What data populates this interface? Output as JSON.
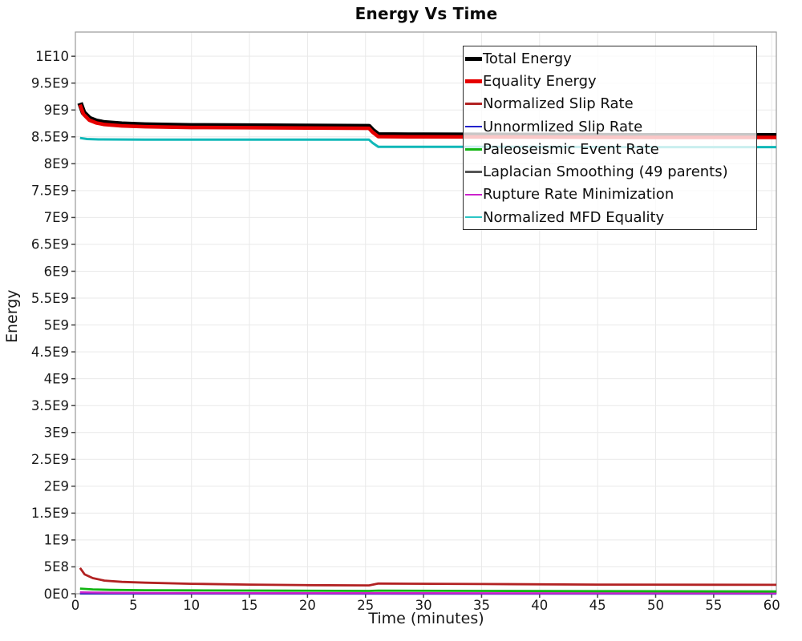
{
  "title": "Energy Vs Time",
  "axes": {
    "x": {
      "label": "Time (minutes)",
      "tick_labels": [
        "0",
        "5",
        "10",
        "15",
        "20",
        "25",
        "30",
        "35",
        "40",
        "45",
        "50",
        "55",
        "60"
      ],
      "tick_values": [
        0,
        5,
        10,
        15,
        20,
        25,
        30,
        35,
        40,
        45,
        50,
        55,
        60
      ]
    },
    "y": {
      "label": "Energy",
      "tick_labels": [
        "0E0",
        "5E8",
        "1E9",
        "1.5E9",
        "2E9",
        "2.5E9",
        "3E9",
        "3.5E9",
        "4E9",
        "4.5E9",
        "5E9",
        "5.5E9",
        "6E9",
        "6.5E9",
        "7E9",
        "7.5E9",
        "8E9",
        "8.5E9",
        "9E9",
        "9.5E9",
        "1E10"
      ],
      "tick_values": [
        0,
        500000000.0,
        1000000000.0,
        1500000000.0,
        2000000000.0,
        2500000000.0,
        3000000000.0,
        3500000000.0,
        4000000000.0,
        4500000000.0,
        5000000000.0,
        5500000000.0,
        6000000000.0,
        6500000000.0,
        7000000000.0,
        7500000000.0,
        8000000000.0,
        8500000000.0,
        9000000000.0,
        9500000000.0,
        10000000000.0
      ]
    }
  },
  "legend": {
    "items": [
      {
        "label": "Total Energy",
        "color": "#000000",
        "swatch_thickness": 5
      },
      {
        "label": "Equality Energy",
        "color": "#e60000",
        "swatch_thickness": 5
      },
      {
        "label": "Normalized Slip Rate",
        "color": "#b22222",
        "swatch_thickness": 2.5
      },
      {
        "label": "Unnormlized Slip Rate",
        "color": "#2222cc",
        "swatch_thickness": 2.5
      },
      {
        "label": "Paleoseismic Event Rate",
        "color": "#12b512",
        "swatch_thickness": 2.5
      },
      {
        "label": "Laplacian Smoothing (49 parents)",
        "color": "#555555",
        "swatch_thickness": 2.5
      },
      {
        "label": "Rupture Rate Minimization",
        "color": "#cc22cc",
        "swatch_thickness": 2.5
      },
      {
        "label": "Normalized MFD Equality",
        "color": "#2cc5c5",
        "swatch_thickness": 2.5
      }
    ]
  },
  "chart_data": {
    "type": "line",
    "title": "Energy Vs Time",
    "xlabel": "Time (minutes)",
    "ylabel": "Energy",
    "xlim": [
      0,
      60.4
    ],
    "ylim": [
      0,
      10450000000.0
    ],
    "grid": true,
    "grid_color": "#e9e9e9",
    "border_color": "#9a9a9a",
    "tick_color": "#444444",
    "legend_position": "top-right",
    "series": [
      {
        "name": "Laplacian Smoothing (49 parents)",
        "color": "#555555",
        "width": 2.5,
        "points": [
          [
            0.4,
            2000000.0
          ],
          [
            10,
            1500000.0
          ],
          [
            60.4,
            1000000.0
          ]
        ]
      },
      {
        "name": "Unnormlized Slip Rate",
        "color": "#2222cc",
        "width": 2.5,
        "points": [
          [
            0.4,
            6000000.0
          ],
          [
            5,
            4000000.0
          ],
          [
            15,
            3000000.0
          ],
          [
            60.4,
            2000000.0
          ]
        ]
      },
      {
        "name": "Rupture Rate Minimization",
        "color": "#cc22cc",
        "width": 2.5,
        "points": [
          [
            0.4,
            25000000.0
          ],
          [
            3,
            18000000.0
          ],
          [
            8,
            14000000.0
          ],
          [
            15,
            12000000.0
          ],
          [
            30,
            10000000.0
          ],
          [
            60.4,
            9000000.0
          ]
        ]
      },
      {
        "name": "Paleoseismic Event Rate",
        "color": "#12b512",
        "width": 2.8,
        "points": [
          [
            0.4,
            95000000.0
          ],
          [
            1.5,
            80000000.0
          ],
          [
            3,
            72000000.0
          ],
          [
            6,
            66000000.0
          ],
          [
            10,
            62000000.0
          ],
          [
            18,
            56000000.0
          ],
          [
            25.3,
            52000000.0
          ],
          [
            26.1,
            58000000.0
          ],
          [
            35,
            52000000.0
          ],
          [
            45,
            47000000.0
          ],
          [
            60.4,
            42000000.0
          ]
        ]
      },
      {
        "name": "Normalized Slip Rate",
        "color": "#b22222",
        "width": 2.8,
        "points": [
          [
            0.4,
            480000000.0
          ],
          [
            0.8,
            360000000.0
          ],
          [
            1.5,
            290000000.0
          ],
          [
            2.5,
            245000000.0
          ],
          [
            4,
            220000000.0
          ],
          [
            6,
            205000000.0
          ],
          [
            10,
            185000000.0
          ],
          [
            15,
            170000000.0
          ],
          [
            20,
            160000000.0
          ],
          [
            25.3,
            155000000.0
          ],
          [
            26.1,
            190000000.0
          ],
          [
            35,
            180000000.0
          ],
          [
            45,
            170000000.0
          ],
          [
            60.4,
            165000000.0
          ]
        ]
      },
      {
        "name": "Normalized MFD Equality",
        "color": "#10b8b8",
        "width": 3,
        "points": [
          [
            0.4,
            8480000000.0
          ],
          [
            1,
            8460000000.0
          ],
          [
            2,
            8452000000.0
          ],
          [
            6,
            8450000000.0
          ],
          [
            12,
            8450000000.0
          ],
          [
            20,
            8450000000.0
          ],
          [
            25.3,
            8448000000.0
          ],
          [
            25.6,
            8390000000.0
          ],
          [
            26.1,
            8315000000.0
          ],
          [
            35,
            8315000000.0
          ],
          [
            50,
            8310000000.0
          ],
          [
            60.4,
            8310000000.0
          ]
        ]
      },
      {
        "name": "Total Energy",
        "color": "#000000",
        "width": 7,
        "points": [
          [
            0.4,
            9130000000.0
          ],
          [
            0.7,
            8950000000.0
          ],
          [
            1.2,
            8840000000.0
          ],
          [
            1.8,
            8790000000.0
          ],
          [
            2.5,
            8760000000.0
          ],
          [
            4,
            8735000000.0
          ],
          [
            6,
            8720000000.0
          ],
          [
            10,
            8705000000.0
          ],
          [
            15,
            8700000000.0
          ],
          [
            20,
            8695000000.0
          ],
          [
            25.3,
            8690000000.0
          ],
          [
            25.6,
            8620000000.0
          ],
          [
            26.1,
            8535000000.0
          ],
          [
            30,
            8530000000.0
          ],
          [
            40,
            8525000000.0
          ],
          [
            50,
            8520000000.0
          ],
          [
            60.4,
            8520000000.0
          ]
        ]
      },
      {
        "name": "Equality Energy",
        "color": "#e60000",
        "width": 4.5,
        "points": [
          [
            0.4,
            9100000000.0
          ],
          [
            0.7,
            8920000000.0
          ],
          [
            1.2,
            8810000000.0
          ],
          [
            1.8,
            8760000000.0
          ],
          [
            2.5,
            8730000000.0
          ],
          [
            4,
            8705000000.0
          ],
          [
            6,
            8690000000.0
          ],
          [
            10,
            8675000000.0
          ],
          [
            15,
            8670000000.0
          ],
          [
            20,
            8665000000.0
          ],
          [
            25.3,
            8660000000.0
          ],
          [
            25.6,
            8590000000.0
          ],
          [
            26.1,
            8505000000.0
          ],
          [
            30,
            8500000000.0
          ],
          [
            40,
            8495000000.0
          ],
          [
            50,
            8490000000.0
          ],
          [
            60.4,
            8490000000.0
          ]
        ]
      }
    ]
  }
}
